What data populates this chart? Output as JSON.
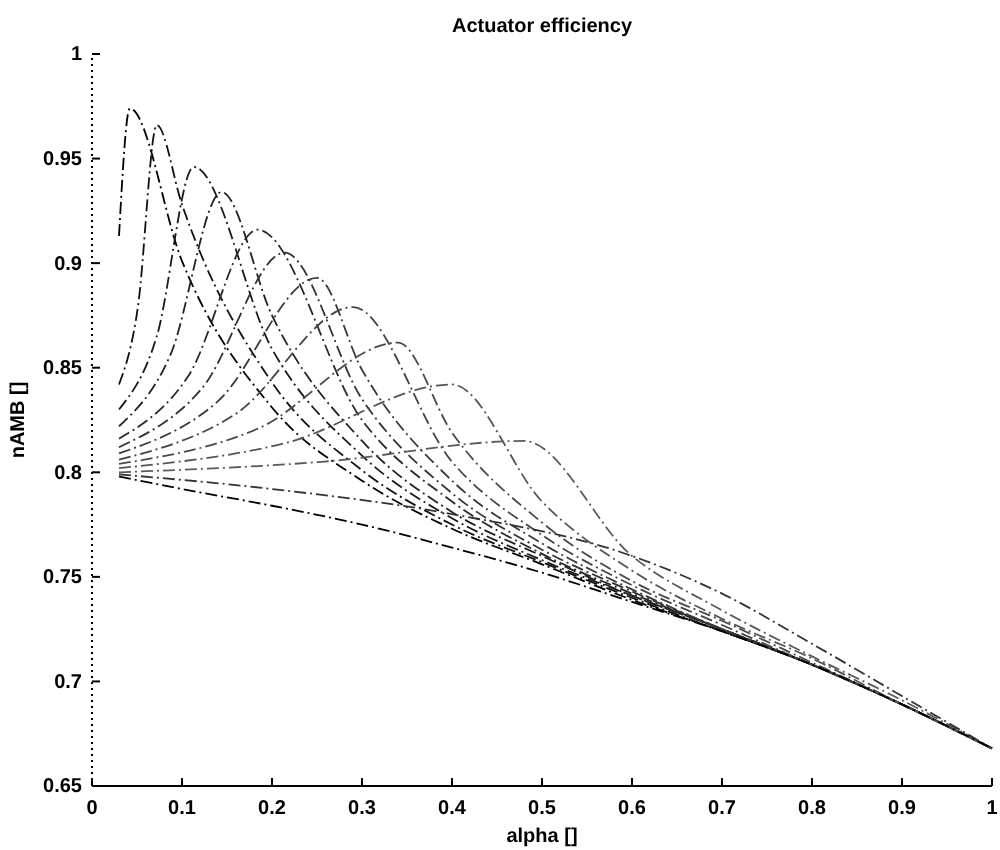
{
  "chart_data": {
    "type": "line",
    "title": "Actuator efficiency",
    "xlabel": "alpha []",
    "ylabel": "nAMB []",
    "xlim": [
      0,
      1
    ],
    "ylim": [
      0.65,
      1
    ],
    "xticks": [
      0,
      0.1,
      0.2,
      0.3,
      0.4,
      0.5,
      0.6,
      0.7,
      0.8,
      0.9,
      1
    ],
    "yticks": [
      0.65,
      0.7,
      0.75,
      0.8,
      0.85,
      0.9,
      0.95,
      1
    ],
    "grid": false,
    "line_style": "dashed",
    "marker": "none",
    "series": [
      {
        "color": "#000000",
        "x": [
          0.03,
          0.042,
          0.1,
          0.2,
          0.3,
          0.4,
          0.5,
          0.6,
          0.7,
          0.8,
          0.9,
          1
        ],
        "values": [
          0.913,
          0.974,
          0.901,
          0.831,
          0.796,
          0.773,
          0.756,
          0.739,
          0.724,
          0.708,
          0.689,
          0.668
        ]
      },
      {
        "color": "#111111",
        "x": [
          0.03,
          0.051,
          0.072,
          0.1,
          0.2,
          0.3,
          0.4,
          0.5,
          0.6,
          0.7,
          0.8,
          0.9,
          1
        ],
        "values": [
          0.842,
          0.879,
          0.966,
          0.928,
          0.843,
          0.801,
          0.775,
          0.757,
          0.74,
          0.724,
          0.708,
          0.689,
          0.668
        ]
      },
      {
        "color": "#1a1a1a",
        "x": [
          0.03,
          0.072,
          0.113,
          0.2,
          0.3,
          0.4,
          0.5,
          0.6,
          0.7,
          0.8,
          0.9,
          1
        ],
        "values": [
          0.83,
          0.865,
          0.946,
          0.859,
          0.808,
          0.778,
          0.758,
          0.741,
          0.725,
          0.708,
          0.689,
          0.668
        ]
      },
      {
        "color": "#222222",
        "x": [
          0.03,
          0.087,
          0.144,
          0.2,
          0.3,
          0.4,
          0.5,
          0.6,
          0.7,
          0.8,
          0.9,
          1
        ],
        "values": [
          0.822,
          0.856,
          0.934,
          0.875,
          0.815,
          0.781,
          0.76,
          0.741,
          0.725,
          0.708,
          0.689,
          0.668
        ]
      },
      {
        "color": "#2a2a2a",
        "x": [
          0.03,
          0.107,
          0.184,
          0.3,
          0.4,
          0.5,
          0.6,
          0.7,
          0.8,
          0.9,
          1
        ],
        "values": [
          0.816,
          0.846,
          0.916,
          0.825,
          0.786,
          0.761,
          0.742,
          0.725,
          0.708,
          0.689,
          0.668
        ]
      },
      {
        "color": "#333333",
        "x": [
          0.03,
          0.122,
          0.214,
          0.3,
          0.4,
          0.5,
          0.6,
          0.7,
          0.8,
          0.9,
          1
        ],
        "values": [
          0.812,
          0.84,
          0.905,
          0.835,
          0.79,
          0.763,
          0.743,
          0.725,
          0.708,
          0.689,
          0.668
        ]
      },
      {
        "color": "#3a3a3a",
        "x": [
          0.03,
          0.14,
          0.25,
          0.3,
          0.4,
          0.5,
          0.6,
          0.7,
          0.8,
          0.9,
          1
        ],
        "values": [
          0.809,
          0.834,
          0.893,
          0.849,
          0.796,
          0.766,
          0.744,
          0.725,
          0.708,
          0.689,
          0.668
        ]
      },
      {
        "color": "#444444",
        "x": [
          0.03,
          0.16,
          0.29,
          0.4,
          0.5,
          0.6,
          0.7,
          0.8,
          0.9,
          1
        ],
        "values": [
          0.806,
          0.828,
          0.879,
          0.805,
          0.77,
          0.746,
          0.727,
          0.708,
          0.689,
          0.668
        ]
      },
      {
        "color": "#4a4a4a",
        "x": [
          0.03,
          0.185,
          0.34,
          0.4,
          0.5,
          0.6,
          0.7,
          0.8,
          0.9,
          1
        ],
        "values": [
          0.804,
          0.821,
          0.862,
          0.819,
          0.776,
          0.748,
          0.729,
          0.709,
          0.689,
          0.668
        ]
      },
      {
        "color": "#555555",
        "x": [
          0.03,
          0.215,
          0.4,
          0.5,
          0.6,
          0.7,
          0.8,
          0.9,
          1
        ],
        "values": [
          0.802,
          0.814,
          0.842,
          0.786,
          0.753,
          0.73,
          0.711,
          0.689,
          0.668
        ]
      },
      {
        "color": "#5a5a5a",
        "x": [
          0.03,
          0.255,
          0.48,
          0.6,
          0.7,
          0.8,
          0.9,
          1
        ],
        "values": [
          0.8,
          0.805,
          0.815,
          0.76,
          0.734,
          0.712,
          0.691,
          0.668
        ]
      },
      {
        "color": "#333333",
        "x": [
          0.03,
          0.2,
          0.4,
          0.6,
          0.7,
          0.8,
          0.9,
          1
        ],
        "values": [
          0.799,
          0.792,
          0.78,
          0.76,
          0.742,
          0.718,
          0.693,
          0.668
        ]
      },
      {
        "color": "#000000",
        "x": [
          0.03,
          0.1,
          0.2,
          0.3,
          0.4,
          0.5,
          0.6,
          0.7,
          0.8,
          0.9,
          1
        ],
        "values": [
          0.798,
          0.792,
          0.784,
          0.775,
          0.764,
          0.752,
          0.738,
          0.724,
          0.708,
          0.689,
          0.668
        ]
      }
    ]
  }
}
